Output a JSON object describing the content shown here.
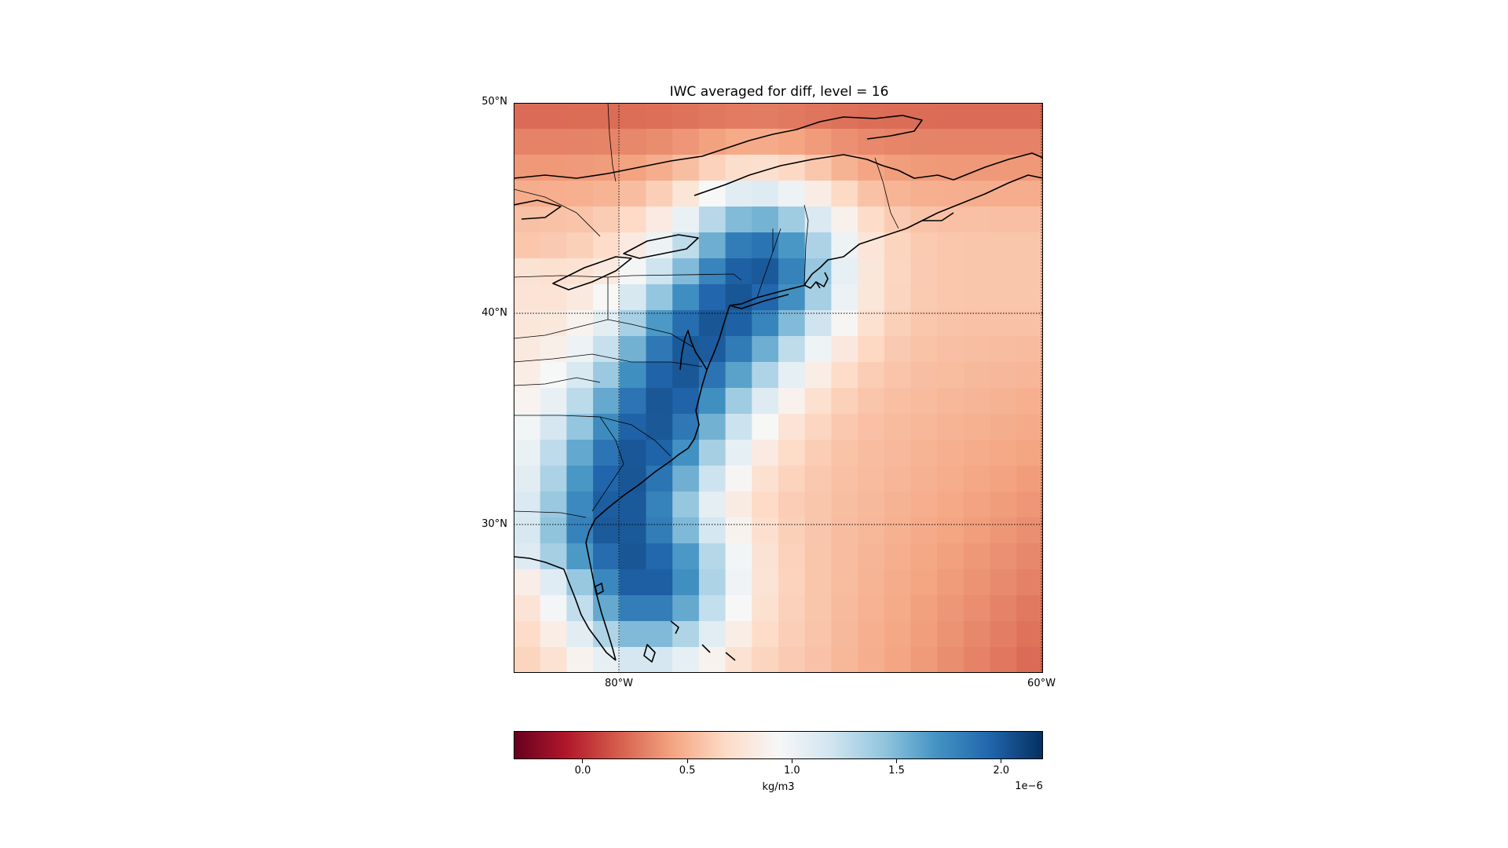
{
  "title": "IWC averaged for diff, level = 16",
  "axes": {
    "lat_labels": [
      "50°N",
      "40°N",
      "30°N"
    ],
    "lon_labels": [
      "80°W",
      "60°W"
    ]
  },
  "colorbar": {
    "colormap": "RdBu",
    "range": [
      -0.33,
      2.2
    ],
    "ticks": [
      "0.0",
      "0.5",
      "1.0",
      "1.5",
      "2.0"
    ],
    "tick_values": [
      0.0,
      0.5,
      1.0,
      1.5,
      2.0
    ],
    "unit": "kg/m3",
    "exponent": "1e−6"
  },
  "colors": {
    "low_end": "#67001f",
    "mid": "#f7f7f7",
    "high_end": "#053061",
    "coastline": "#000000"
  }
}
